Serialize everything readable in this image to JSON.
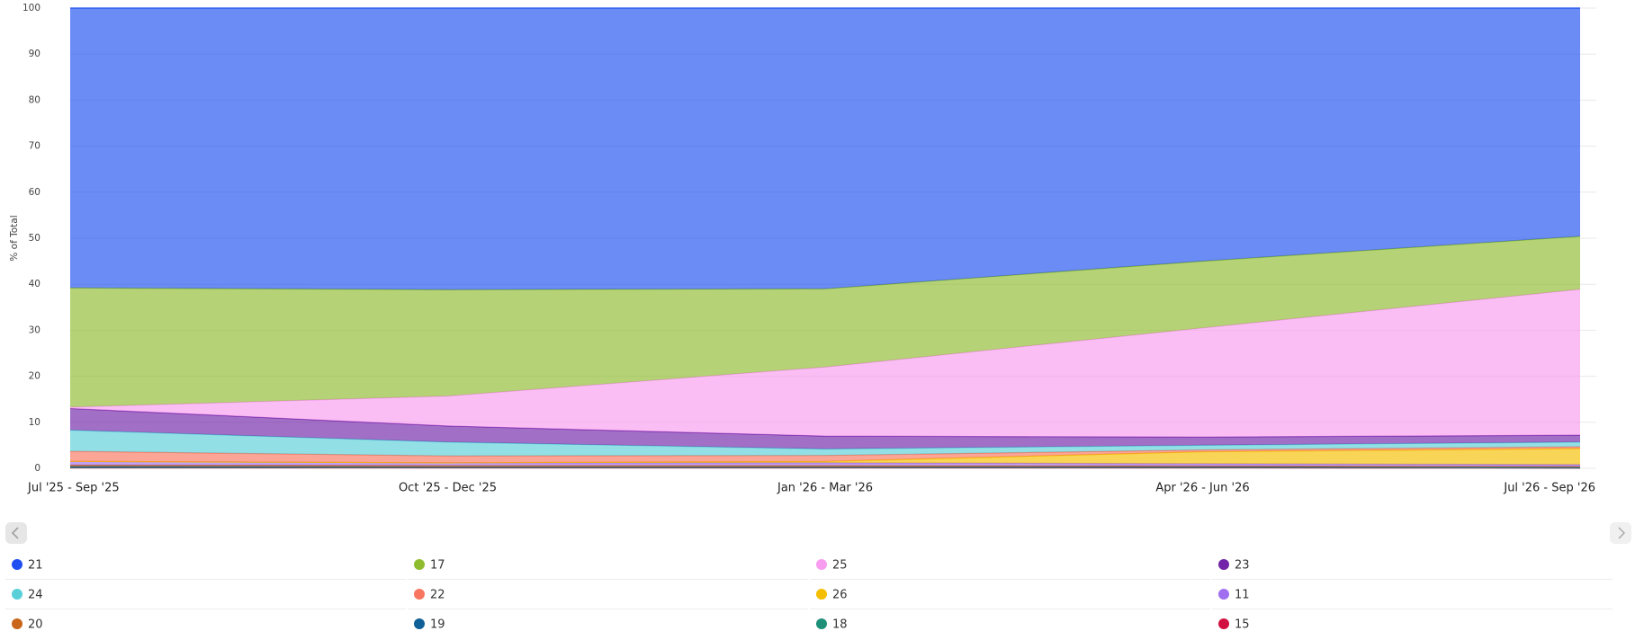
{
  "chart_data": {
    "type": "area",
    "stacked": true,
    "y_label": "% of Total",
    "categories": [
      "Jul '25 - Sep '25",
      "Oct '25 - Dec '25",
      "Jan '26 - Mar '26",
      "Apr '26 - Jun '26",
      "Jul '26 - Sep '26"
    ],
    "ylim": [
      0,
      100
    ],
    "yticks": [
      0,
      10,
      20,
      30,
      40,
      50,
      60,
      70,
      80,
      90,
      100
    ],
    "grid": true,
    "series": [
      {
        "name": "21",
        "color": "#1f4ff0",
        "values": [
          60.8,
          61.2,
          61,
          55,
          49.6
        ]
      },
      {
        "name": "17",
        "color": "#8fbc2f",
        "values": [
          25.9,
          23.1,
          17,
          14.5,
          11.5
        ]
      },
      {
        "name": "25",
        "color": "#f79cef",
        "values": [
          0.3,
          6.5,
          15,
          23.7,
          31.7
        ]
      },
      {
        "name": "23",
        "color": "#7224a8",
        "values": [
          4.7,
          3.5,
          2.8,
          1.8,
          1.5
        ]
      },
      {
        "name": "24",
        "color": "#59d0d8",
        "values": [
          4.6,
          3.0,
          1.4,
          1.0,
          1.0
        ]
      },
      {
        "name": "22",
        "color": "#f87660",
        "values": [
          2.2,
          1.5,
          1.3,
          0.4,
          0.4
        ]
      },
      {
        "name": "26",
        "color": "#f5be00",
        "values": [
          0,
          0,
          0.3,
          2.6,
          3.5
        ]
      },
      {
        "name": "11",
        "color": "#a06ff0",
        "values": [
          0.8,
          0.6,
          0.6,
          0.5,
          0.4
        ]
      },
      {
        "name": "20",
        "color": "#c8651a",
        "values": [
          0.3,
          0.3,
          0.3,
          0.2,
          0.2
        ]
      },
      {
        "name": "19",
        "color": "#0f5f98",
        "values": [
          0.2,
          0.1,
          0.1,
          0.1,
          0.1
        ]
      },
      {
        "name": "18",
        "color": "#1f9078",
        "values": [
          0.1,
          0.1,
          0.1,
          0.1,
          0.05
        ]
      },
      {
        "name": "15",
        "color": "#d2103f",
        "values": [
          0.1,
          0.1,
          0.1,
          0.1,
          0.05
        ]
      }
    ]
  }
}
